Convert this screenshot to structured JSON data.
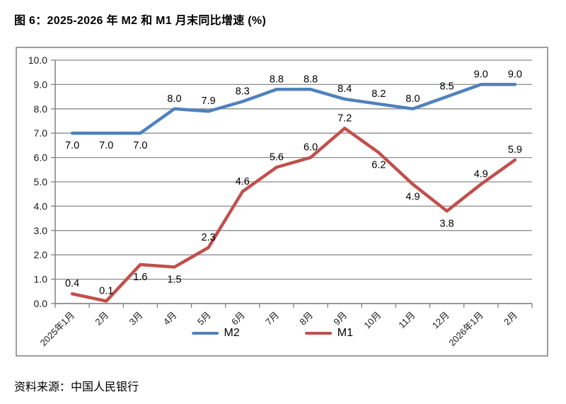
{
  "figure": {
    "title": "图 6：2025-2026 年 M2 和 M1 月末同比增速 (%)",
    "source": "资料来源：中国人民银行"
  },
  "chart_data": {
    "type": "line",
    "categories": [
      "2025年1月",
      "2月",
      "3月",
      "4月",
      "5月",
      "6月",
      "7月",
      "8月",
      "9月",
      "10月",
      "11月",
      "12月",
      "2026年1月",
      "2月"
    ],
    "series": [
      {
        "name": "M2",
        "color": "#4F81BD",
        "values": [
          7.0,
          7.0,
          7.0,
          8.0,
          7.9,
          8.3,
          8.8,
          8.8,
          8.4,
          8.2,
          8.0,
          8.5,
          9.0,
          9.0
        ],
        "label_positions": [
          "below",
          "below",
          "below",
          "above",
          "above",
          "above",
          "above",
          "above",
          "above",
          "above",
          "above",
          "above",
          "above",
          "above"
        ]
      },
      {
        "name": "M1",
        "color": "#C0504D",
        "values": [
          0.4,
          0.1,
          1.6,
          1.5,
          2.3,
          4.6,
          5.6,
          6.0,
          7.2,
          6.2,
          4.9,
          3.8,
          4.9,
          5.9
        ],
        "label_positions": [
          "above",
          "above",
          "below",
          "below",
          "above",
          "above",
          "above",
          "above",
          "above",
          "below",
          "below",
          "below",
          "above",
          "above"
        ]
      }
    ],
    "title": "",
    "xlabel": "",
    "ylabel": "",
    "ylim": [
      0,
      10
    ],
    "ytick_step": 1.0,
    "ytick_decimals": 1,
    "grid": true,
    "legend_position": "bottom-center",
    "colors": {
      "grid_line": "#8c8c8c",
      "axis_line": "#808080",
      "tick_label": "#1a1a1a",
      "data_label": "#000000",
      "chart_border": "#9d9d9d"
    }
  }
}
